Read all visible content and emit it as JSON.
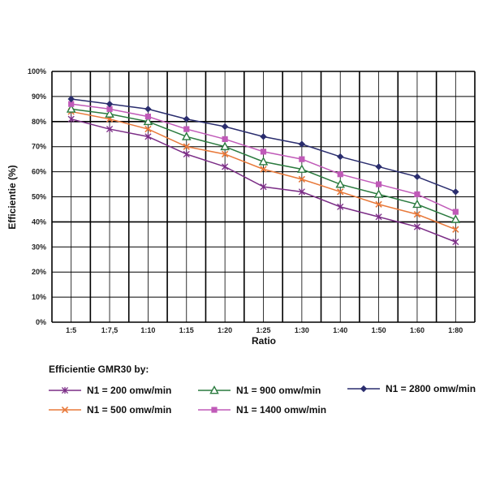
{
  "chart_data": {
    "type": "line",
    "title": "",
    "xlabel": "Ratio",
    "ylabel": "Efficientie (%)",
    "categories": [
      "1:5",
      "1:7,5",
      "1:10",
      "1:15",
      "1:20",
      "1:25",
      "1:30",
      "1:40",
      "1:50",
      "1:60",
      "1:80"
    ],
    "yticks": [
      "0%",
      "10%",
      "20%",
      "30%",
      "40%",
      "50%",
      "60%",
      "70%",
      "80%",
      "90%",
      "100%"
    ],
    "ylim": [
      0,
      100
    ],
    "grid": true,
    "legend_title": "Efficientie GMR30 by:",
    "legend_position": "bottom",
    "series": [
      {
        "name": "N1 = 200 omw/min",
        "marker": "star",
        "color": "#7b2d86",
        "values": [
          81,
          77,
          74,
          67,
          62,
          54,
          52,
          46,
          42,
          38,
          32
        ]
      },
      {
        "name": "N1 = 500 omw/min",
        "marker": "x",
        "color": "#e8793a",
        "values": [
          84,
          81,
          77,
          70,
          67,
          61,
          57,
          52,
          47,
          43,
          37
        ]
      },
      {
        "name": "N1 = 900 omw/min",
        "marker": "triangle",
        "color": "#2a7a3e",
        "values": [
          85,
          83,
          80,
          74,
          70,
          64,
          61,
          55,
          51,
          47,
          41
        ]
      },
      {
        "name": "N1 = 1400 omw/min",
        "marker": "square",
        "color": "#c05ab8",
        "values": [
          87,
          85,
          82,
          77,
          73,
          68,
          65,
          59,
          55,
          51,
          44
        ]
      },
      {
        "name": "N1 = 2800 omw/min",
        "marker": "diamond",
        "color": "#2a2d6e",
        "values": [
          89,
          87,
          85,
          81,
          78,
          74,
          71,
          66,
          62,
          58,
          52
        ]
      }
    ]
  }
}
